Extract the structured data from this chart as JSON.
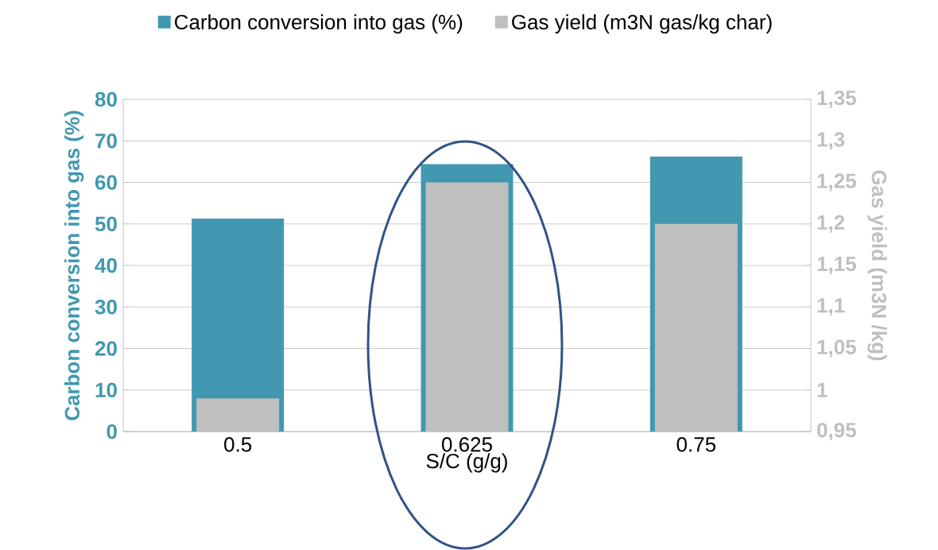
{
  "chart_data": {
    "type": "bar",
    "xlabel": "S/C (g/g)",
    "ylabel": "Carbon conversion into gas (%)",
    "y2label": "Gas yield (m3N /kg)",
    "categories": [
      "0.5",
      "0.625",
      "0.75"
    ],
    "series": [
      {
        "name": "Carbon conversion into gas (%)",
        "color": "#4198b0",
        "values": [
          51.3,
          64.4,
          66.2
        ]
      },
      {
        "name": "Gas yield (m3N gas/kg char)",
        "color": "#bfbfbf",
        "values": [
          0.99,
          1.25,
          1.2
        ],
        "axis": "y2"
      }
    ],
    "ylim": [
      0,
      80
    ],
    "yticks": [
      0,
      10,
      20,
      30,
      40,
      50,
      60,
      70,
      80
    ],
    "y2lim": [
      0.95,
      1.35
    ],
    "y2ticks": [
      {
        "value": 0.95,
        "label": "0,95"
      },
      {
        "value": 1.0,
        "label": "1"
      },
      {
        "value": 1.05,
        "label": "1,05"
      },
      {
        "value": 1.1,
        "label": "1,1"
      },
      {
        "value": 1.15,
        "label": "1,15"
      },
      {
        "value": 1.2,
        "label": "1,2"
      },
      {
        "value": 1.25,
        "label": "1,25"
      },
      {
        "value": 1.3,
        "label": "1,3"
      },
      {
        "value": 1.35,
        "label": "1,35"
      }
    ],
    "grid": "y",
    "legend": "top"
  }
}
